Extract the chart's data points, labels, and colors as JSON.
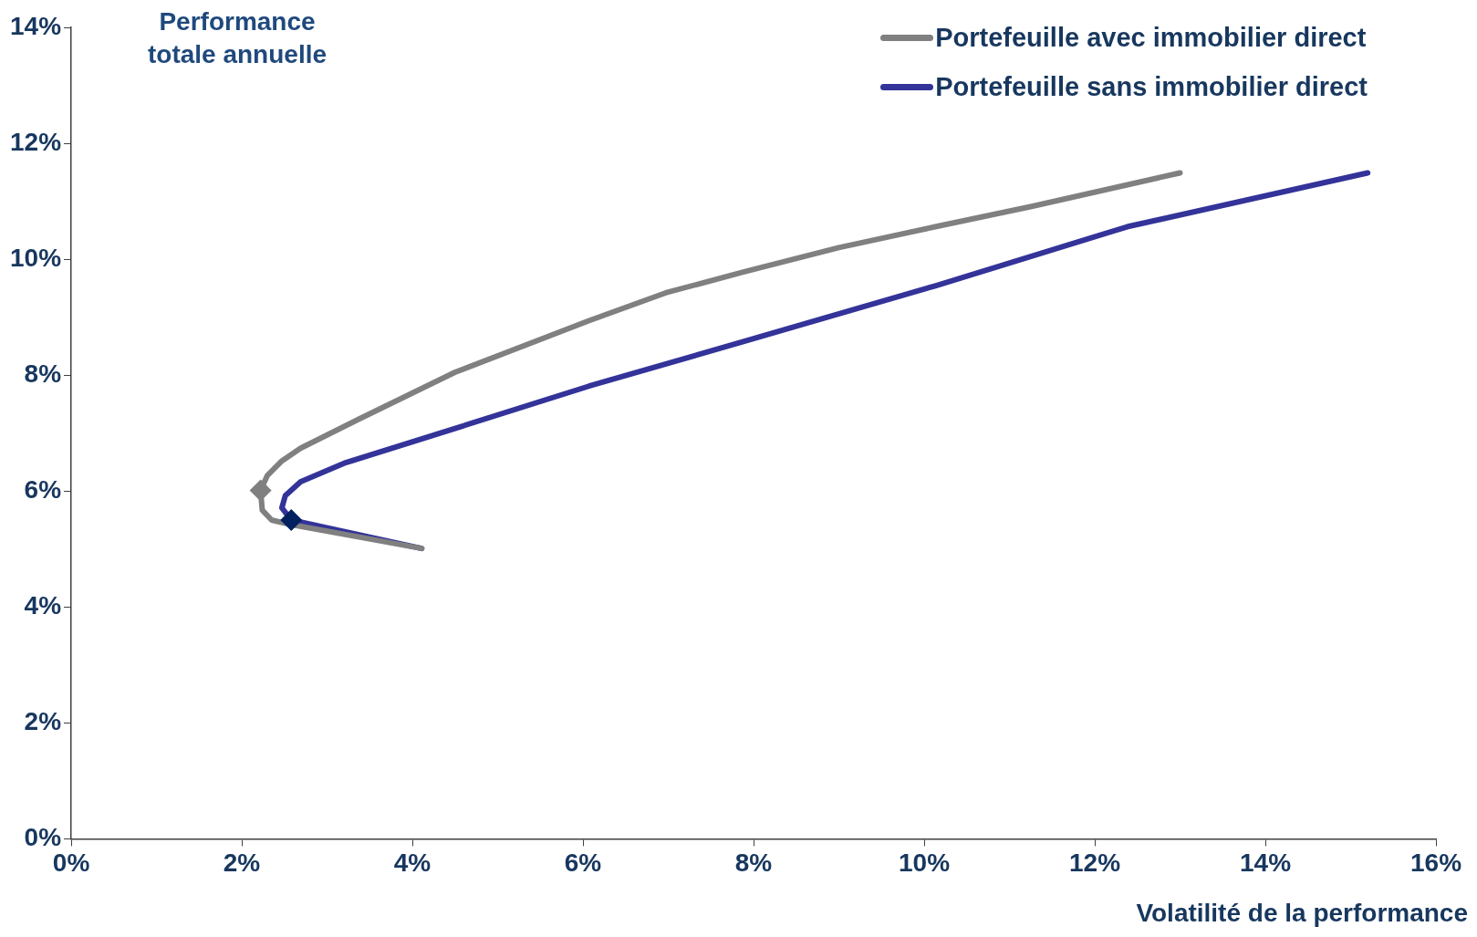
{
  "chart_data": {
    "type": "line",
    "xlabel": "Volatilité de la performance",
    "ylabel": "Performance totale annuelle",
    "xlim": [
      0,
      16
    ],
    "xticks": [
      {
        "value": 0,
        "label": "0%"
      },
      {
        "value": 2,
        "label": "2%"
      },
      {
        "value": 4,
        "label": "4%"
      },
      {
        "value": 6,
        "label": "6%"
      },
      {
        "value": 8,
        "label": "8%"
      },
      {
        "value": 10,
        "label": "10%"
      },
      {
        "value": 12,
        "label": "12%"
      },
      {
        "value": 14,
        "label": "14%"
      },
      {
        "value": 16,
        "label": "16%"
      }
    ],
    "ylim": [
      0,
      14
    ],
    "yticks": [
      {
        "value": 0,
        "label": "0%"
      },
      {
        "value": 2,
        "label": "2%"
      },
      {
        "value": 4,
        "label": "4%"
      },
      {
        "value": 6,
        "label": "6%"
      },
      {
        "value": 8,
        "label": "8%"
      },
      {
        "value": 10,
        "label": "10%"
      },
      {
        "value": 12,
        "label": "12%"
      },
      {
        "value": 14,
        "label": "14%"
      }
    ],
    "grid": false,
    "legend": "top right",
    "marker": "none",
    "line_style": "solid",
    "series": [
      {
        "name": "Portefeuille avec immobilier direct",
        "color": "#808080",
        "x": [
          4.11,
          2.58,
          2.35,
          2.24,
          2.22,
          2.3,
          2.47,
          2.69,
          3.37,
          4.5,
          6.07,
          6.97,
          7.88,
          9.0,
          10.13,
          11.26,
          13.0
        ],
        "values": [
          5.01,
          5.42,
          5.5,
          5.67,
          6.01,
          6.27,
          6.52,
          6.74,
          7.24,
          8.05,
          8.94,
          9.42,
          9.78,
          10.2,
          10.56,
          10.91,
          11.49
        ]
      },
      {
        "name": "Portefeuille sans immobilier direct",
        "color": "#333399",
        "x": [
          4.11,
          2.58,
          2.47,
          2.51,
          2.69,
          3.2,
          4.5,
          6.07,
          7.88,
          10.13,
          12.38,
          15.2
        ],
        "values": [
          5.01,
          5.5,
          5.71,
          5.92,
          6.16,
          6.48,
          7.08,
          7.81,
          8.58,
          9.54,
          10.56,
          11.49
        ]
      },
      {
        "type": "scatter",
        "marker": "diamond",
        "color": "#808080",
        "x": [
          2.22
        ],
        "values": [
          6.01
        ]
      },
      {
        "type": "scatter",
        "marker": "diamond",
        "color": "#002060",
        "x": [
          2.58
        ],
        "values": [
          5.5
        ]
      }
    ]
  }
}
